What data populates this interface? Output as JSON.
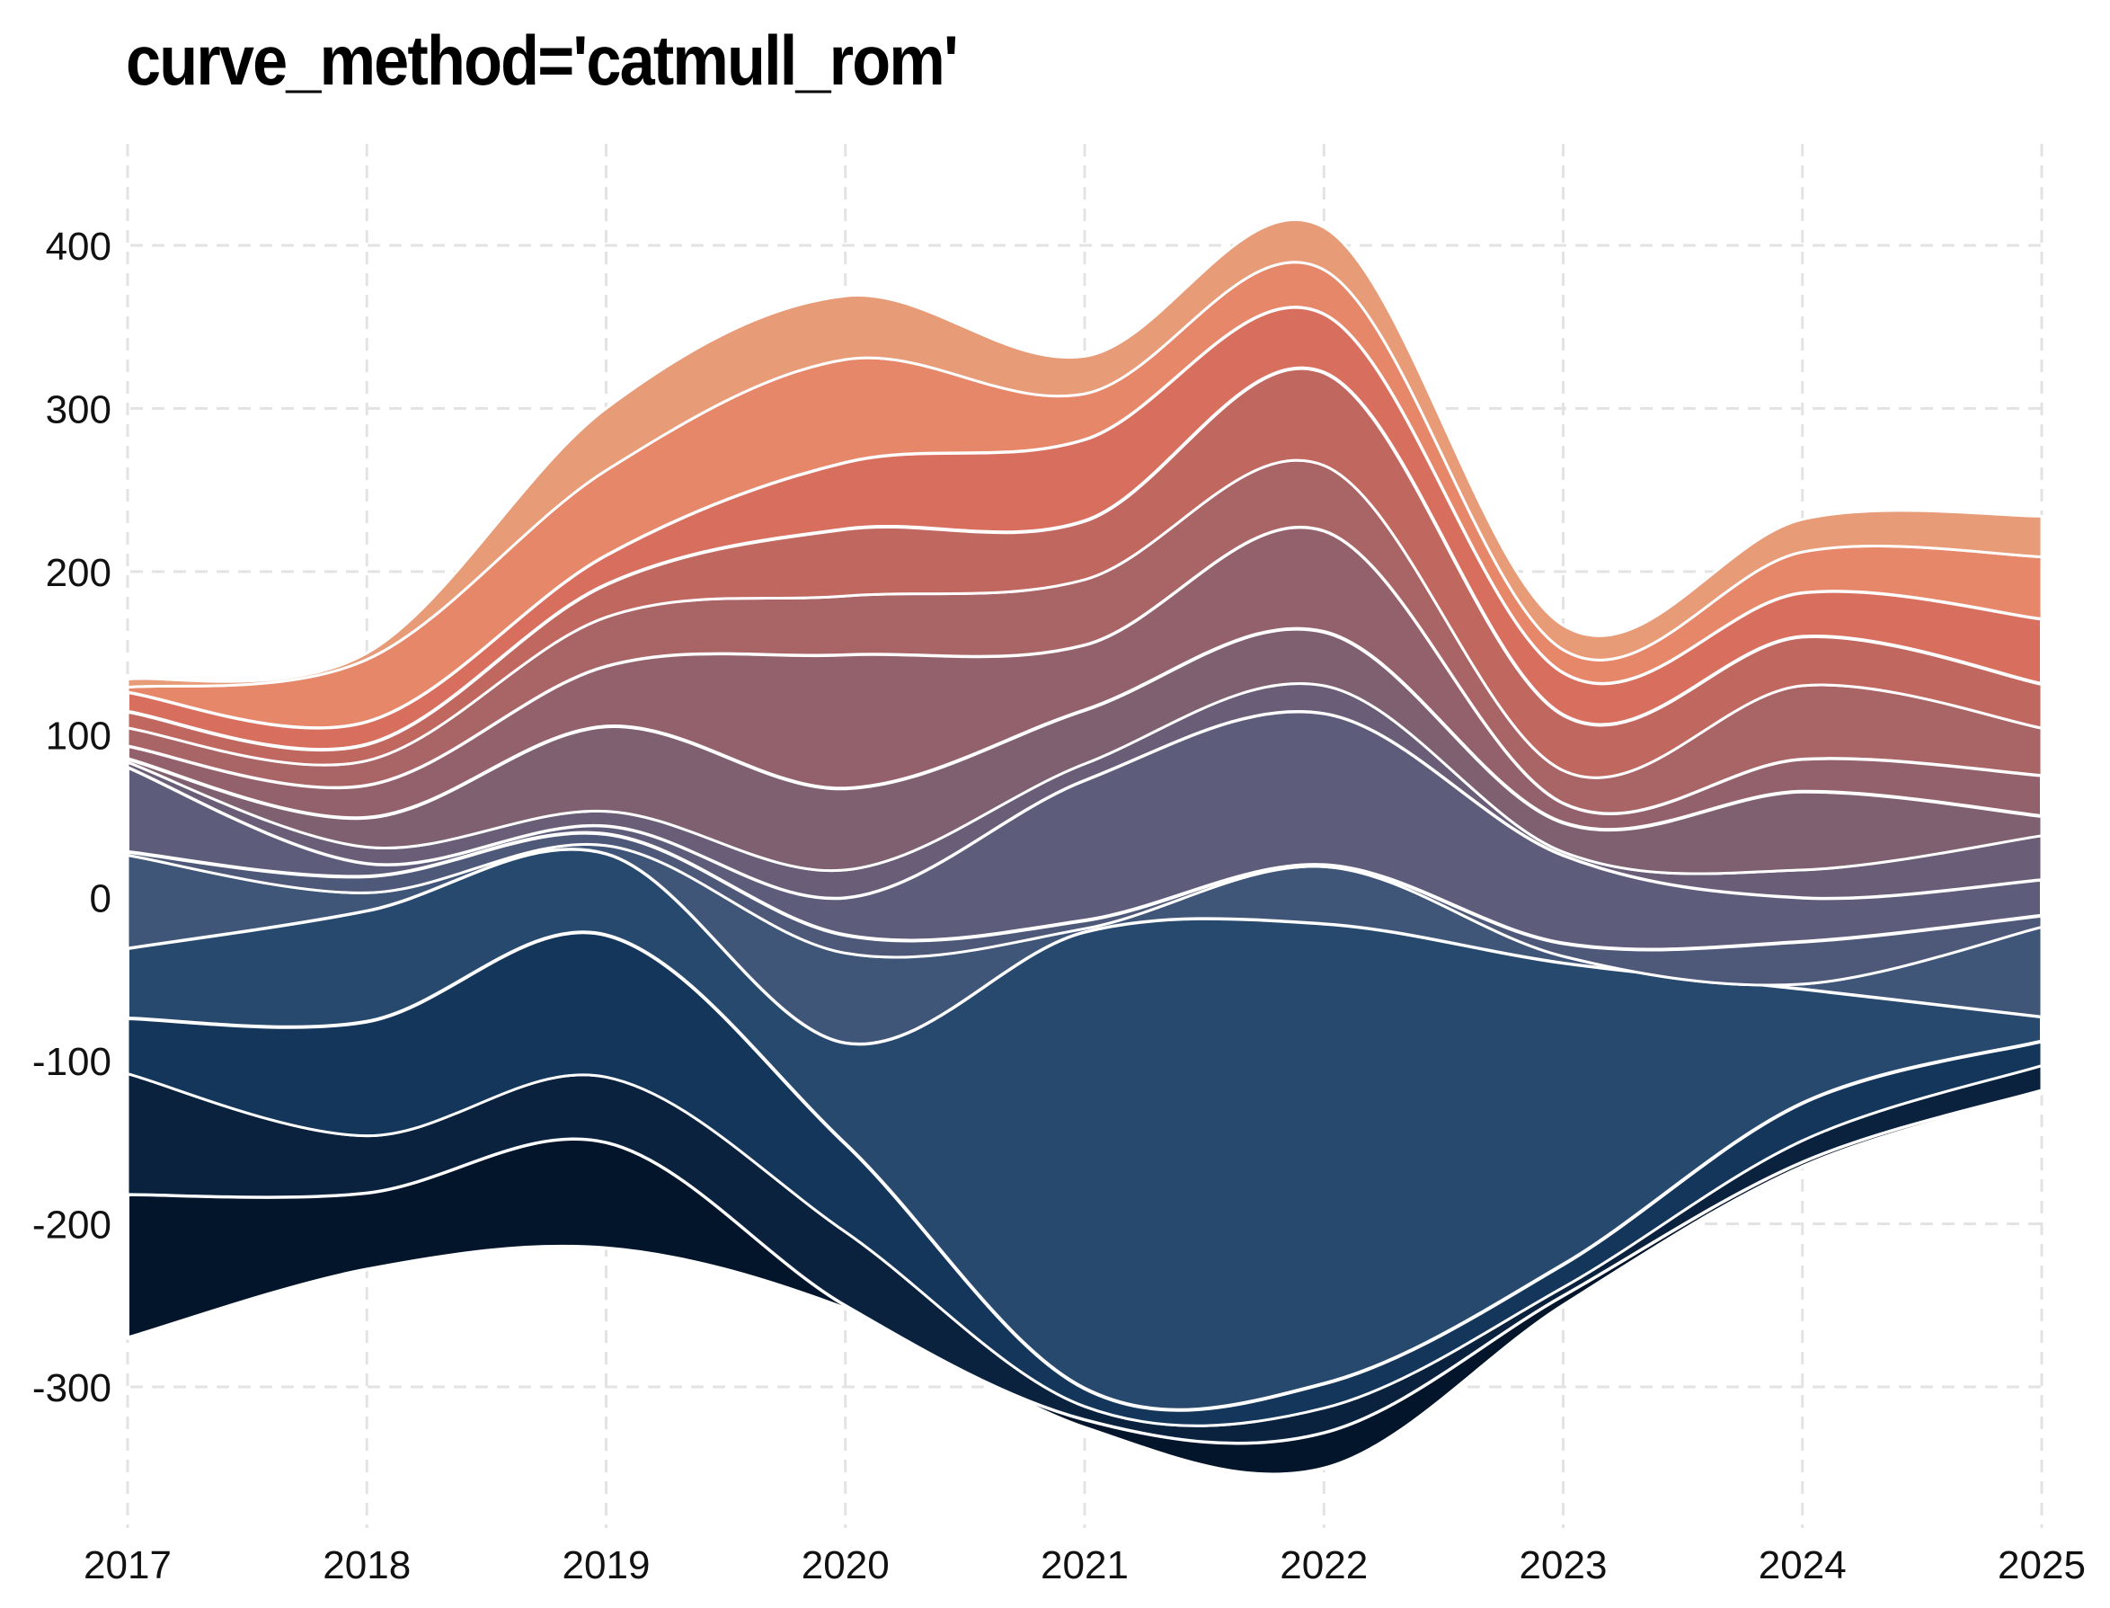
{
  "chart_data": {
    "type": "area",
    "subtype": "streamgraph",
    "title": "curve_method='catmull_rom'",
    "xlabel": "",
    "ylabel": "",
    "x": [
      2017,
      2018,
      2019,
      2020,
      2021,
      2022,
      2023,
      2024,
      2025
    ],
    "x_tick_labels": [
      "2017",
      "2018",
      "2019",
      "2020",
      "2021",
      "2022",
      "2023",
      "2024",
      "2025"
    ],
    "y_ticks": [
      -300,
      -200,
      -100,
      0,
      100,
      200,
      300,
      400
    ],
    "y_tick_labels": [
      "-300",
      "-200",
      "-100",
      "0",
      "100",
      "200",
      "300",
      "400"
    ],
    "xlim": [
      2017,
      2025
    ],
    "ylim": [
      -390,
      460
    ],
    "grid": true,
    "grid_style": "dashed",
    "legend": "none",
    "baseline": [
      -270,
      -228,
      -215,
      -252,
      -325,
      -350,
      -250,
      -165,
      -120
    ],
    "series": [
      {
        "values": [
          88,
          47,
          65,
          2,
          5,
          22,
          6,
          3,
          2
        ],
        "color": "#03152a"
      },
      {
        "values": [
          74,
          35,
          40,
          45,
          8,
          15,
          5,
          13,
          15
        ],
        "color": "#0a223e"
      },
      {
        "values": [
          34,
          70,
          87,
          54,
          11,
          15,
          14,
          23,
          15
        ],
        "color": "#13365a"
      },
      {
        "values": [
          43,
          68,
          50,
          62,
          280,
          282,
          185,
          70,
          15
        ],
        "color": "#27496e"
      },
      {
        "values": [
          57,
          11,
          5,
          55,
          2,
          35,
          4,
          3,
          55
        ],
        "color": "#3f5678"
      },
      {
        "values": [
          2,
          10,
          7,
          11,
          5,
          1,
          8,
          26,
          7
        ],
        "color": "#4e5878"
      },
      {
        "values": [
          52,
          8,
          5,
          23,
          86,
          93,
          54,
          27,
          22
        ],
        "color": "#5e5c7b"
      },
      {
        "values": [
          3,
          10,
          9,
          17,
          10,
          17,
          2,
          17,
          27
        ],
        "color": "#6a5d78"
      },
      {
        "values": [
          2,
          18,
          52,
          50,
          33,
          33,
          18,
          48,
          12
        ],
        "color": "#7e6070"
      },
      {
        "values": [
          8,
          20,
          37,
          82,
          40,
          62,
          12,
          20,
          25
        ],
        "color": "#93616b"
      },
      {
        "values": [
          11,
          15,
          30,
          36,
          40,
          40,
          20,
          45,
          29
        ],
        "color": "#a96465"
      },
      {
        "values": [
          10,
          10,
          20,
          41,
          36,
          57,
          34,
          30,
          27
        ],
        "color": "#c0675f"
      },
      {
        "values": [
          12,
          14,
          18,
          41,
          50,
          36,
          26,
          27,
          40
        ],
        "color": "#d86f5e"
      },
      {
        "values": [
          3,
          38,
          52,
          63,
          28,
          27,
          14,
          25,
          38
        ],
        "color": "#e6876a"
      },
      {
        "values": [
          5,
          4,
          38,
          39,
          23,
          26,
          15,
          20,
          25
        ],
        "color": "#e79b77"
      }
    ]
  }
}
